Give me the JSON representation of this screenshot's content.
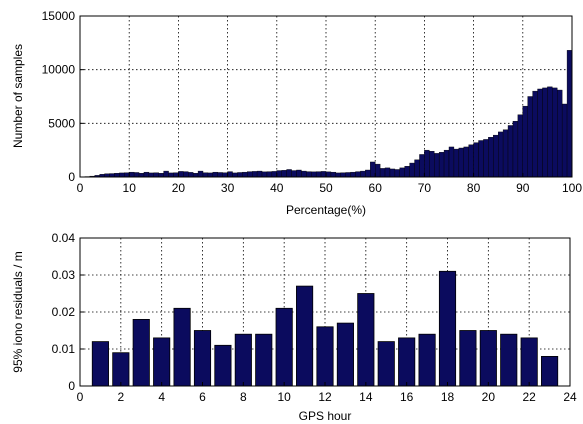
{
  "chart_data": [
    {
      "type": "bar",
      "title": "",
      "xlabel": "Percentage(%)",
      "ylabel": "Number of samples",
      "xlim": [
        0,
        100
      ],
      "ylim": [
        0,
        15000
      ],
      "xticks": [
        0,
        10,
        20,
        30,
        40,
        50,
        60,
        70,
        80,
        90,
        100
      ],
      "yticks": [
        0,
        5000,
        10000,
        15000
      ],
      "grid": true,
      "bar_color": "#0b0b5e",
      "bin_width": 1,
      "x": [
        1,
        2,
        3,
        4,
        5,
        6,
        7,
        8,
        9,
        10,
        11,
        12,
        13,
        14,
        15,
        16,
        17,
        18,
        19,
        20,
        21,
        22,
        23,
        24,
        25,
        26,
        27,
        28,
        29,
        30,
        31,
        32,
        33,
        34,
        35,
        36,
        37,
        38,
        39,
        40,
        41,
        42,
        43,
        44,
        45,
        46,
        47,
        48,
        49,
        50,
        51,
        52,
        53,
        54,
        55,
        56,
        57,
        58,
        59,
        60,
        61,
        62,
        63,
        64,
        65,
        66,
        67,
        68,
        69,
        70,
        71,
        72,
        73,
        74,
        75,
        76,
        77,
        78,
        79,
        80,
        81,
        82,
        83,
        84,
        85,
        86,
        87,
        88,
        89,
        90,
        91,
        92,
        93,
        94,
        95,
        96,
        97,
        98,
        99,
        100
      ],
      "values": [
        20,
        40,
        80,
        150,
        250,
        300,
        320,
        350,
        380,
        400,
        450,
        420,
        350,
        450,
        380,
        400,
        350,
        550,
        380,
        400,
        520,
        500,
        430,
        350,
        550,
        400,
        380,
        450,
        420,
        400,
        500,
        380,
        420,
        450,
        500,
        520,
        550,
        480,
        500,
        520,
        600,
        620,
        700,
        600,
        650,
        550,
        500,
        480,
        500,
        520,
        480,
        450,
        380,
        400,
        420,
        450,
        500,
        550,
        650,
        1400,
        1200,
        800,
        850,
        750,
        700,
        850,
        1000,
        1300,
        1600,
        2100,
        2500,
        2400,
        2200,
        2300,
        2500,
        2800,
        2600,
        2700,
        2800,
        3000,
        3200,
        3400,
        3500,
        3700,
        3900,
        4200,
        4400,
        4800,
        5200,
        5800,
        6600,
        7500,
        8000,
        8200,
        8300,
        8400,
        8300,
        8100,
        6800,
        11800
      ]
    },
    {
      "type": "bar",
      "title": "",
      "xlabel": "GPS hour",
      "ylabel": "95% iono residuals / m",
      "xlim": [
        0,
        24
      ],
      "ylim": [
        0,
        0.04
      ],
      "xticks": [
        0,
        2,
        4,
        6,
        8,
        10,
        12,
        14,
        16,
        18,
        20,
        22,
        24
      ],
      "yticks": [
        "0",
        "0.01",
        "0.02",
        "0.03",
        "0.04"
      ],
      "grid": true,
      "bar_color": "#0b0b5e",
      "x": [
        1,
        2,
        3,
        4,
        5,
        6,
        7,
        8,
        9,
        10,
        11,
        12,
        13,
        14,
        15,
        16,
        17,
        18,
        19,
        20,
        21,
        22,
        23
      ],
      "values": [
        0.012,
        0.009,
        0.018,
        0.013,
        0.021,
        0.015,
        0.011,
        0.014,
        0.014,
        0.021,
        0.027,
        0.016,
        0.017,
        0.025,
        0.012,
        0.013,
        0.014,
        0.031,
        0.015,
        0.015,
        0.014,
        0.013,
        0.008
      ]
    }
  ]
}
